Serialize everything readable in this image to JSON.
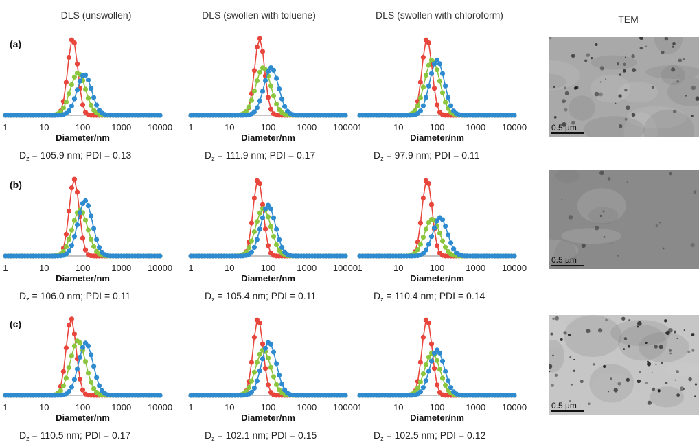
{
  "column_titles": [
    "DLS (unswollen)",
    "DLS (swollen with toluene)",
    "DLS (swollen with chloroform)",
    "TEM"
  ],
  "row_labels": [
    "(a)",
    "(b)",
    "(c)"
  ],
  "tem_scale_label": "0.5 µm",
  "series_colors": {
    "red": "#e8453c",
    "green": "#8cc63e",
    "blue": "#2e8bd0"
  },
  "chart_data": [
    {
      "type": "line",
      "xscale": "log",
      "xlabel": "Diameter/nm",
      "xticks": [
        "1",
        "10",
        "100",
        "1000",
        "10000"
      ],
      "xlim": [
        1,
        10000
      ],
      "peaks": {
        "red": [
          55,
          1.0
        ],
        "green": [
          75,
          0.55
        ],
        "blue": [
          110,
          0.53
        ]
      },
      "caption": {
        "lead": "D",
        "sub": "z",
        "rest": " = 105.9 nm; PDI = 0.13"
      }
    },
    {
      "type": "line",
      "xscale": "log",
      "xlabel": "Diameter/nm",
      "xticks": [
        "1",
        "10",
        "100",
        "1000",
        "10000"
      ],
      "xlim": [
        1,
        10000
      ],
      "peaks": {
        "red": [
          60,
          1.0
        ],
        "green": [
          75,
          0.62
        ],
        "blue": [
          120,
          0.62
        ]
      },
      "caption": {
        "lead": "D",
        "sub": "z",
        "rest": " = 111.9 nm; PDI = 0.17"
      }
    },
    {
      "type": "line",
      "xscale": "log",
      "xlabel": "Diameter/nm",
      "xticks": [
        "1",
        "10",
        "100",
        "1000",
        "10000"
      ],
      "xlim": [
        1,
        10000
      ],
      "peaks": {
        "red": [
          55,
          1.0
        ],
        "green": [
          75,
          0.72
        ],
        "blue": [
          100,
          0.72
        ]
      },
      "caption": {
        "lead": "D",
        "sub": "z",
        "rest": " = 97.9 nm; PDI = 0.11"
      }
    },
    {
      "type": "line",
      "xscale": "log",
      "xlabel": "Diameter/nm",
      "xticks": [
        "1",
        "10",
        "100",
        "1000",
        "10000"
      ],
      "xlim": [
        1,
        10000
      ],
      "peaks": {
        "red": [
          60,
          1.0
        ],
        "green": [
          85,
          0.6
        ],
        "blue": [
          115,
          0.72
        ]
      },
      "caption": {
        "lead": "D",
        "sub": "z",
        "rest": " = 106.0 nm; PDI = 0.11"
      }
    },
    {
      "type": "line",
      "xscale": "log",
      "xlabel": "Diameter/nm",
      "xticks": [
        "1",
        "10",
        "100",
        "1000",
        "10000"
      ],
      "xlim": [
        1,
        10000
      ],
      "peaks": {
        "red": [
          55,
          1.0
        ],
        "green": [
          75,
          0.62
        ],
        "blue": [
          100,
          0.66
        ]
      },
      "caption": {
        "lead": "D",
        "sub": "z",
        "rest": " = 105.4 nm; PDI = 0.11"
      }
    },
    {
      "type": "line",
      "xscale": "log",
      "xlabel": "Diameter/nm",
      "xticks": [
        "1",
        "10",
        "100",
        "1000",
        "10000"
      ],
      "xlim": [
        1,
        10000
      ],
      "peaks": {
        "red": [
          55,
          1.0
        ],
        "green": [
          75,
          0.48
        ],
        "blue": [
          120,
          0.5
        ]
      },
      "caption": {
        "lead": "D",
        "sub": "z",
        "rest": " = 110.4 nm; PDI = 0.14"
      }
    },
    {
      "type": "line",
      "xscale": "log",
      "xlabel": "Diameter/nm",
      "xticks": [
        "1",
        "10",
        "100",
        "1000",
        "10000"
      ],
      "xlim": [
        1,
        10000
      ],
      "peaks": {
        "red": [
          50,
          1.0
        ],
        "green": [
          75,
          0.71
        ],
        "blue": [
          120,
          0.68
        ]
      },
      "caption": {
        "lead": "D",
        "sub": "z",
        "rest": " = 110.5 nm; PDI = 0.17"
      }
    },
    {
      "type": "line",
      "xscale": "log",
      "xlabel": "Diameter/nm",
      "xticks": [
        "1",
        "10",
        "100",
        "1000",
        "10000"
      ],
      "xlim": [
        1,
        10000
      ],
      "peaks": {
        "red": [
          55,
          1.0
        ],
        "green": [
          75,
          0.59
        ],
        "blue": [
          105,
          0.69
        ]
      },
      "caption": {
        "lead": "D",
        "sub": "z",
        "rest": " = 102.1 nm; PDI = 0.15"
      }
    },
    {
      "type": "line",
      "xscale": "log",
      "xlabel": "Diameter/nm",
      "xticks": [
        "1",
        "10",
        "100",
        "1000",
        "10000"
      ],
      "xlim": [
        1,
        10000
      ],
      "peaks": {
        "red": [
          55,
          1.0
        ],
        "green": [
          75,
          0.55
        ],
        "blue": [
          100,
          0.59
        ]
      },
      "caption": {
        "lead": "D",
        "sub": "z",
        "rest": " = 102.5 nm; PDI = 0.12"
      }
    }
  ]
}
